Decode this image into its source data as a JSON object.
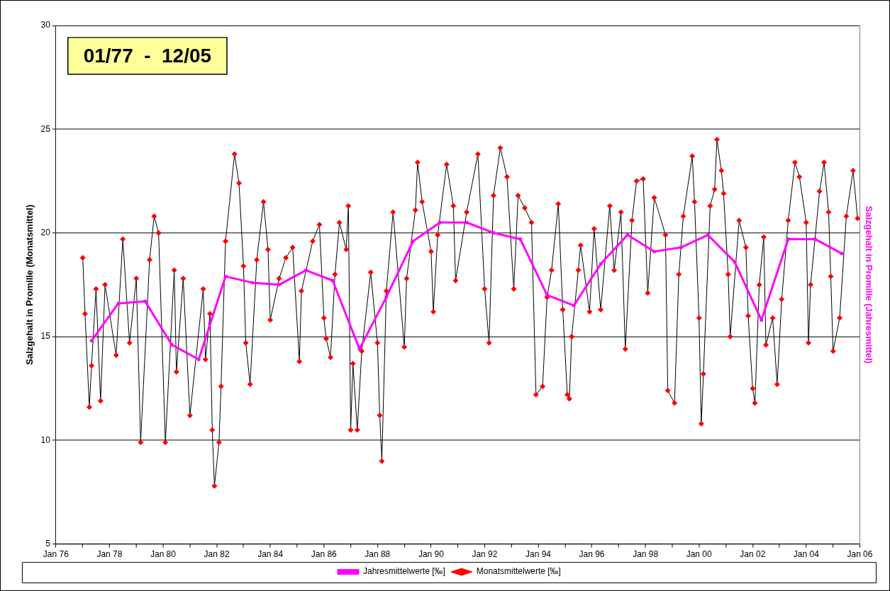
{
  "chart_data": {
    "type": "line",
    "ylabel": "Salzgehalt in Promille (Monatsmittel)",
    "y2label": "Salzgehalt in Promille (Jahresmittel)",
    "annotations": [
      "01/77  -  12/05"
    ],
    "xlim": [
      "1976-01",
      "2006-01"
    ],
    "xticks": [
      {
        "value": "1976-01",
        "label": "Jan 76"
      },
      {
        "value": "1977-01",
        "label": null
      },
      {
        "value": "1978-01",
        "label": "Jan 78"
      },
      {
        "value": "1979-01",
        "label": null
      },
      {
        "value": "1980-01",
        "label": "Jan 80"
      },
      {
        "value": "1981-01",
        "label": null
      },
      {
        "value": "1982-01",
        "label": "Jan 82"
      },
      {
        "value": "1983-01",
        "label": null
      },
      {
        "value": "1984-01",
        "label": "Jan 84"
      },
      {
        "value": "1985-01",
        "label": null
      },
      {
        "value": "1986-01",
        "label": "Jan 86"
      },
      {
        "value": "1987-01",
        "label": null
      },
      {
        "value": "1988-01",
        "label": "Jan 88"
      },
      {
        "value": "1989-01",
        "label": null
      },
      {
        "value": "1990-01",
        "label": "Jan 90"
      },
      {
        "value": "1991-01",
        "label": null
      },
      {
        "value": "1992-01",
        "label": "Jan 92"
      },
      {
        "value": "1993-01",
        "label": null
      },
      {
        "value": "1994-01",
        "label": "Jan 94"
      },
      {
        "value": "1995-01",
        "label": null
      },
      {
        "value": "1996-01",
        "label": "Jan 96"
      },
      {
        "value": "1997-01",
        "label": null
      },
      {
        "value": "1998-01",
        "label": "Jan 98"
      },
      {
        "value": "1999-01",
        "label": null
      },
      {
        "value": "2000-01",
        "label": "Jan 00"
      },
      {
        "value": "2001-01",
        "label": null
      },
      {
        "value": "2002-01",
        "label": "Jan 02"
      },
      {
        "value": "2003-01",
        "label": null
      },
      {
        "value": "2004-01",
        "label": "Jan 04"
      },
      {
        "value": "2005-01",
        "label": null
      },
      {
        "value": "2006-01",
        "label": "Jan 06"
      }
    ],
    "ylim": [
      5,
      30
    ],
    "yticks": [
      5,
      10,
      15,
      20,
      25,
      30
    ],
    "grid": "y",
    "legend": "bottom",
    "marker": "diamond",
    "series": [
      {
        "name": "Monatsmittelwerte [‰]",
        "color": "#ff0000",
        "x": [
          "1977-01",
          "1977-02",
          "1977-04",
          "1977-05",
          "1977-07",
          "1977-09",
          "1977-11",
          "1978-04",
          "1978-07",
          "1978-10",
          "1979-01",
          "1979-03",
          "1979-07",
          "1979-09",
          "1979-11",
          "1980-02",
          "1980-06",
          "1980-07",
          "1980-10",
          "1981-01",
          "1981-07",
          "1981-08",
          "1981-10",
          "1981-11",
          "1981-12",
          "1982-02",
          "1982-03",
          "1982-05",
          "1982-09",
          "1982-11",
          "1983-01",
          "1983-02",
          "1983-04",
          "1983-07",
          "1983-10",
          "1983-12",
          "1984-01",
          "1984-05",
          "1984-08",
          "1984-11",
          "1985-02",
          "1985-03",
          "1985-08",
          "1985-11",
          "1986-01",
          "1986-02",
          "1986-04",
          "1986-06",
          "1986-08",
          "1986-11",
          "1986-12",
          "1987-01",
          "1987-02",
          "1987-04",
          "1987-06",
          "1987-10",
          "1988-01",
          "1988-02",
          "1988-03",
          "1988-05",
          "1988-08",
          "1989-01",
          "1989-02",
          "1989-06",
          "1989-07",
          "1989-09",
          "1990-01",
          "1990-02",
          "1990-04",
          "1990-08",
          "1990-11",
          "1990-12",
          "1991-05",
          "1991-10",
          "1992-01",
          "1992-03",
          "1992-05",
          "1992-08",
          "1992-11",
          "1993-02",
          "1993-04",
          "1993-07",
          "1993-10",
          "1993-12",
          "1994-03",
          "1994-05",
          "1994-07",
          "1994-10",
          "1994-12",
          "1995-02",
          "1995-03",
          "1995-04",
          "1995-07",
          "1995-08",
          "1995-12",
          "1996-02",
          "1996-05",
          "1996-09",
          "1996-11",
          "1997-02",
          "1997-04",
          "1997-07",
          "1997-09",
          "1997-12",
          "1998-02",
          "1998-05",
          "1998-10",
          "1998-11",
          "1999-02",
          "1999-04",
          "1999-06",
          "1999-10",
          "1999-11",
          "2000-01",
          "2000-02",
          "2000-03",
          "2000-06",
          "2000-08",
          "2000-09",
          "2000-11",
          "2000-12",
          "2001-02",
          "2001-03",
          "2001-07",
          "2001-10",
          "2001-11",
          "2002-01",
          "2002-02",
          "2002-04",
          "2002-06",
          "2002-07",
          "2002-10",
          "2002-12",
          "2003-02",
          "2003-05",
          "2003-08",
          "2003-10",
          "2004-01",
          "2004-02",
          "2004-03",
          "2004-07",
          "2004-09",
          "2004-11",
          "2004-12",
          "2005-01",
          "2005-04",
          "2005-07",
          "2005-10",
          "2005-12"
        ],
        "values": [
          18.8,
          16.1,
          11.6,
          13.6,
          17.3,
          11.9,
          17.5,
          14.1,
          19.7,
          14.7,
          17.8,
          9.9,
          18.7,
          20.8,
          20.0,
          9.9,
          18.2,
          13.3,
          17.8,
          11.2,
          17.3,
          13.9,
          16.1,
          10.5,
          7.8,
          9.9,
          12.6,
          19.6,
          23.8,
          22.4,
          18.4,
          14.7,
          12.7,
          18.7,
          21.5,
          19.2,
          15.8,
          17.8,
          18.8,
          19.3,
          13.8,
          17.2,
          19.6,
          20.4,
          15.9,
          14.9,
          14.0,
          18.0,
          20.5,
          19.2,
          21.3,
          10.5,
          13.7,
          10.5,
          14.3,
          18.1,
          14.7,
          11.2,
          9.0,
          17.2,
          21.0,
          14.5,
          17.8,
          21.1,
          23.4,
          21.5,
          19.1,
          16.2,
          19.9,
          23.3,
          21.3,
          17.7,
          21.0,
          23.8,
          17.3,
          14.7,
          21.8,
          24.1,
          22.7,
          17.3,
          21.8,
          21.2,
          20.5,
          12.2,
          12.6,
          16.9,
          18.2,
          21.4,
          16.3,
          12.2,
          12.0,
          15.0,
          18.2,
          19.4,
          16.2,
          20.2,
          16.3,
          21.3,
          18.2,
          21.0,
          14.4,
          20.6,
          22.5,
          22.6,
          17.1,
          21.7,
          19.9,
          12.4,
          11.8,
          18.0,
          20.8,
          23.7,
          21.5,
          15.9,
          10.8,
          13.2,
          21.3,
          22.1,
          24.5,
          23.0,
          21.9,
          18.0,
          15.0,
          20.6,
          19.3,
          16.0,
          12.5,
          11.8,
          17.5,
          19.8,
          14.6,
          15.9,
          12.7,
          16.8,
          20.6,
          23.4,
          22.7,
          20.5,
          14.7,
          17.5,
          22.0,
          23.4,
          21.0,
          17.9,
          14.3,
          15.9,
          20.8,
          23.0,
          20.7
        ]
      },
      {
        "name": "Jahresmittelwerte [‰]",
        "color": "#ff00ff",
        "marker": "square",
        "x": [
          "1977-05",
          "1978-05",
          "1979-05",
          "1980-05",
          "1981-05",
          "1982-05",
          "1983-05",
          "1984-05",
          "1985-05",
          "1986-05",
          "1987-05",
          "1988-05",
          "1989-05",
          "1990-05",
          "1991-05",
          "1992-05",
          "1993-05",
          "1994-05",
          "1995-05",
          "1996-05",
          "1997-05",
          "1998-05",
          "1999-05",
          "2000-05",
          "2001-05",
          "2002-05",
          "2003-05",
          "2004-05",
          "2005-05"
        ],
        "values": [
          14.8,
          16.6,
          16.7,
          14.6,
          13.9,
          17.9,
          17.6,
          17.5,
          18.2,
          17.7,
          14.4,
          16.9,
          19.6,
          20.5,
          20.5,
          20.0,
          19.7,
          17.0,
          16.5,
          18.5,
          19.9,
          19.1,
          19.3,
          19.9,
          18.6,
          15.8,
          19.7,
          19.7,
          19.0
        ]
      }
    ]
  }
}
